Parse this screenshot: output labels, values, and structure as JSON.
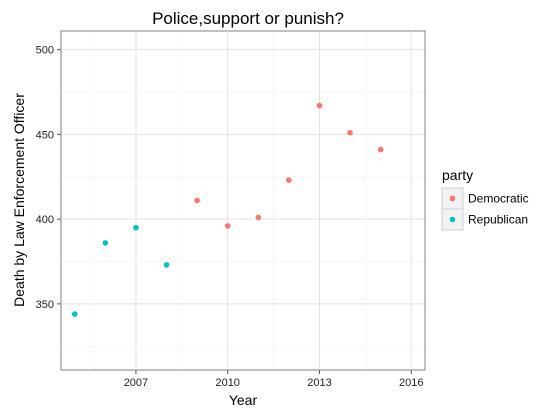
{
  "chart_data": {
    "type": "scatter",
    "title": "Police,support or punish?",
    "xlabel": "Year",
    "ylabel": "Death by Law Enforcement Officer",
    "xlim": [
      2004.55,
      2016.45
    ],
    "ylim": [
      311,
      511
    ],
    "x_ticks": [
      2007,
      2010,
      2013,
      2016
    ],
    "y_ticks": [
      350,
      400,
      450,
      500
    ],
    "grid": true,
    "legend": {
      "title": "party",
      "position": "right"
    },
    "series": [
      {
        "name": "Democratic",
        "color": "#F8766D",
        "points": [
          {
            "x": 2009,
            "y": 411
          },
          {
            "x": 2010,
            "y": 396
          },
          {
            "x": 2011,
            "y": 401
          },
          {
            "x": 2012,
            "y": 423
          },
          {
            "x": 2013,
            "y": 467
          },
          {
            "x": 2014,
            "y": 451
          },
          {
            "x": 2015,
            "y": 441
          }
        ]
      },
      {
        "name": "Republican",
        "color": "#00BFC4",
        "points": [
          {
            "x": 2005,
            "y": 344
          },
          {
            "x": 2006,
            "y": 386
          },
          {
            "x": 2007,
            "y": 395
          },
          {
            "x": 2008,
            "y": 373
          }
        ]
      }
    ]
  }
}
